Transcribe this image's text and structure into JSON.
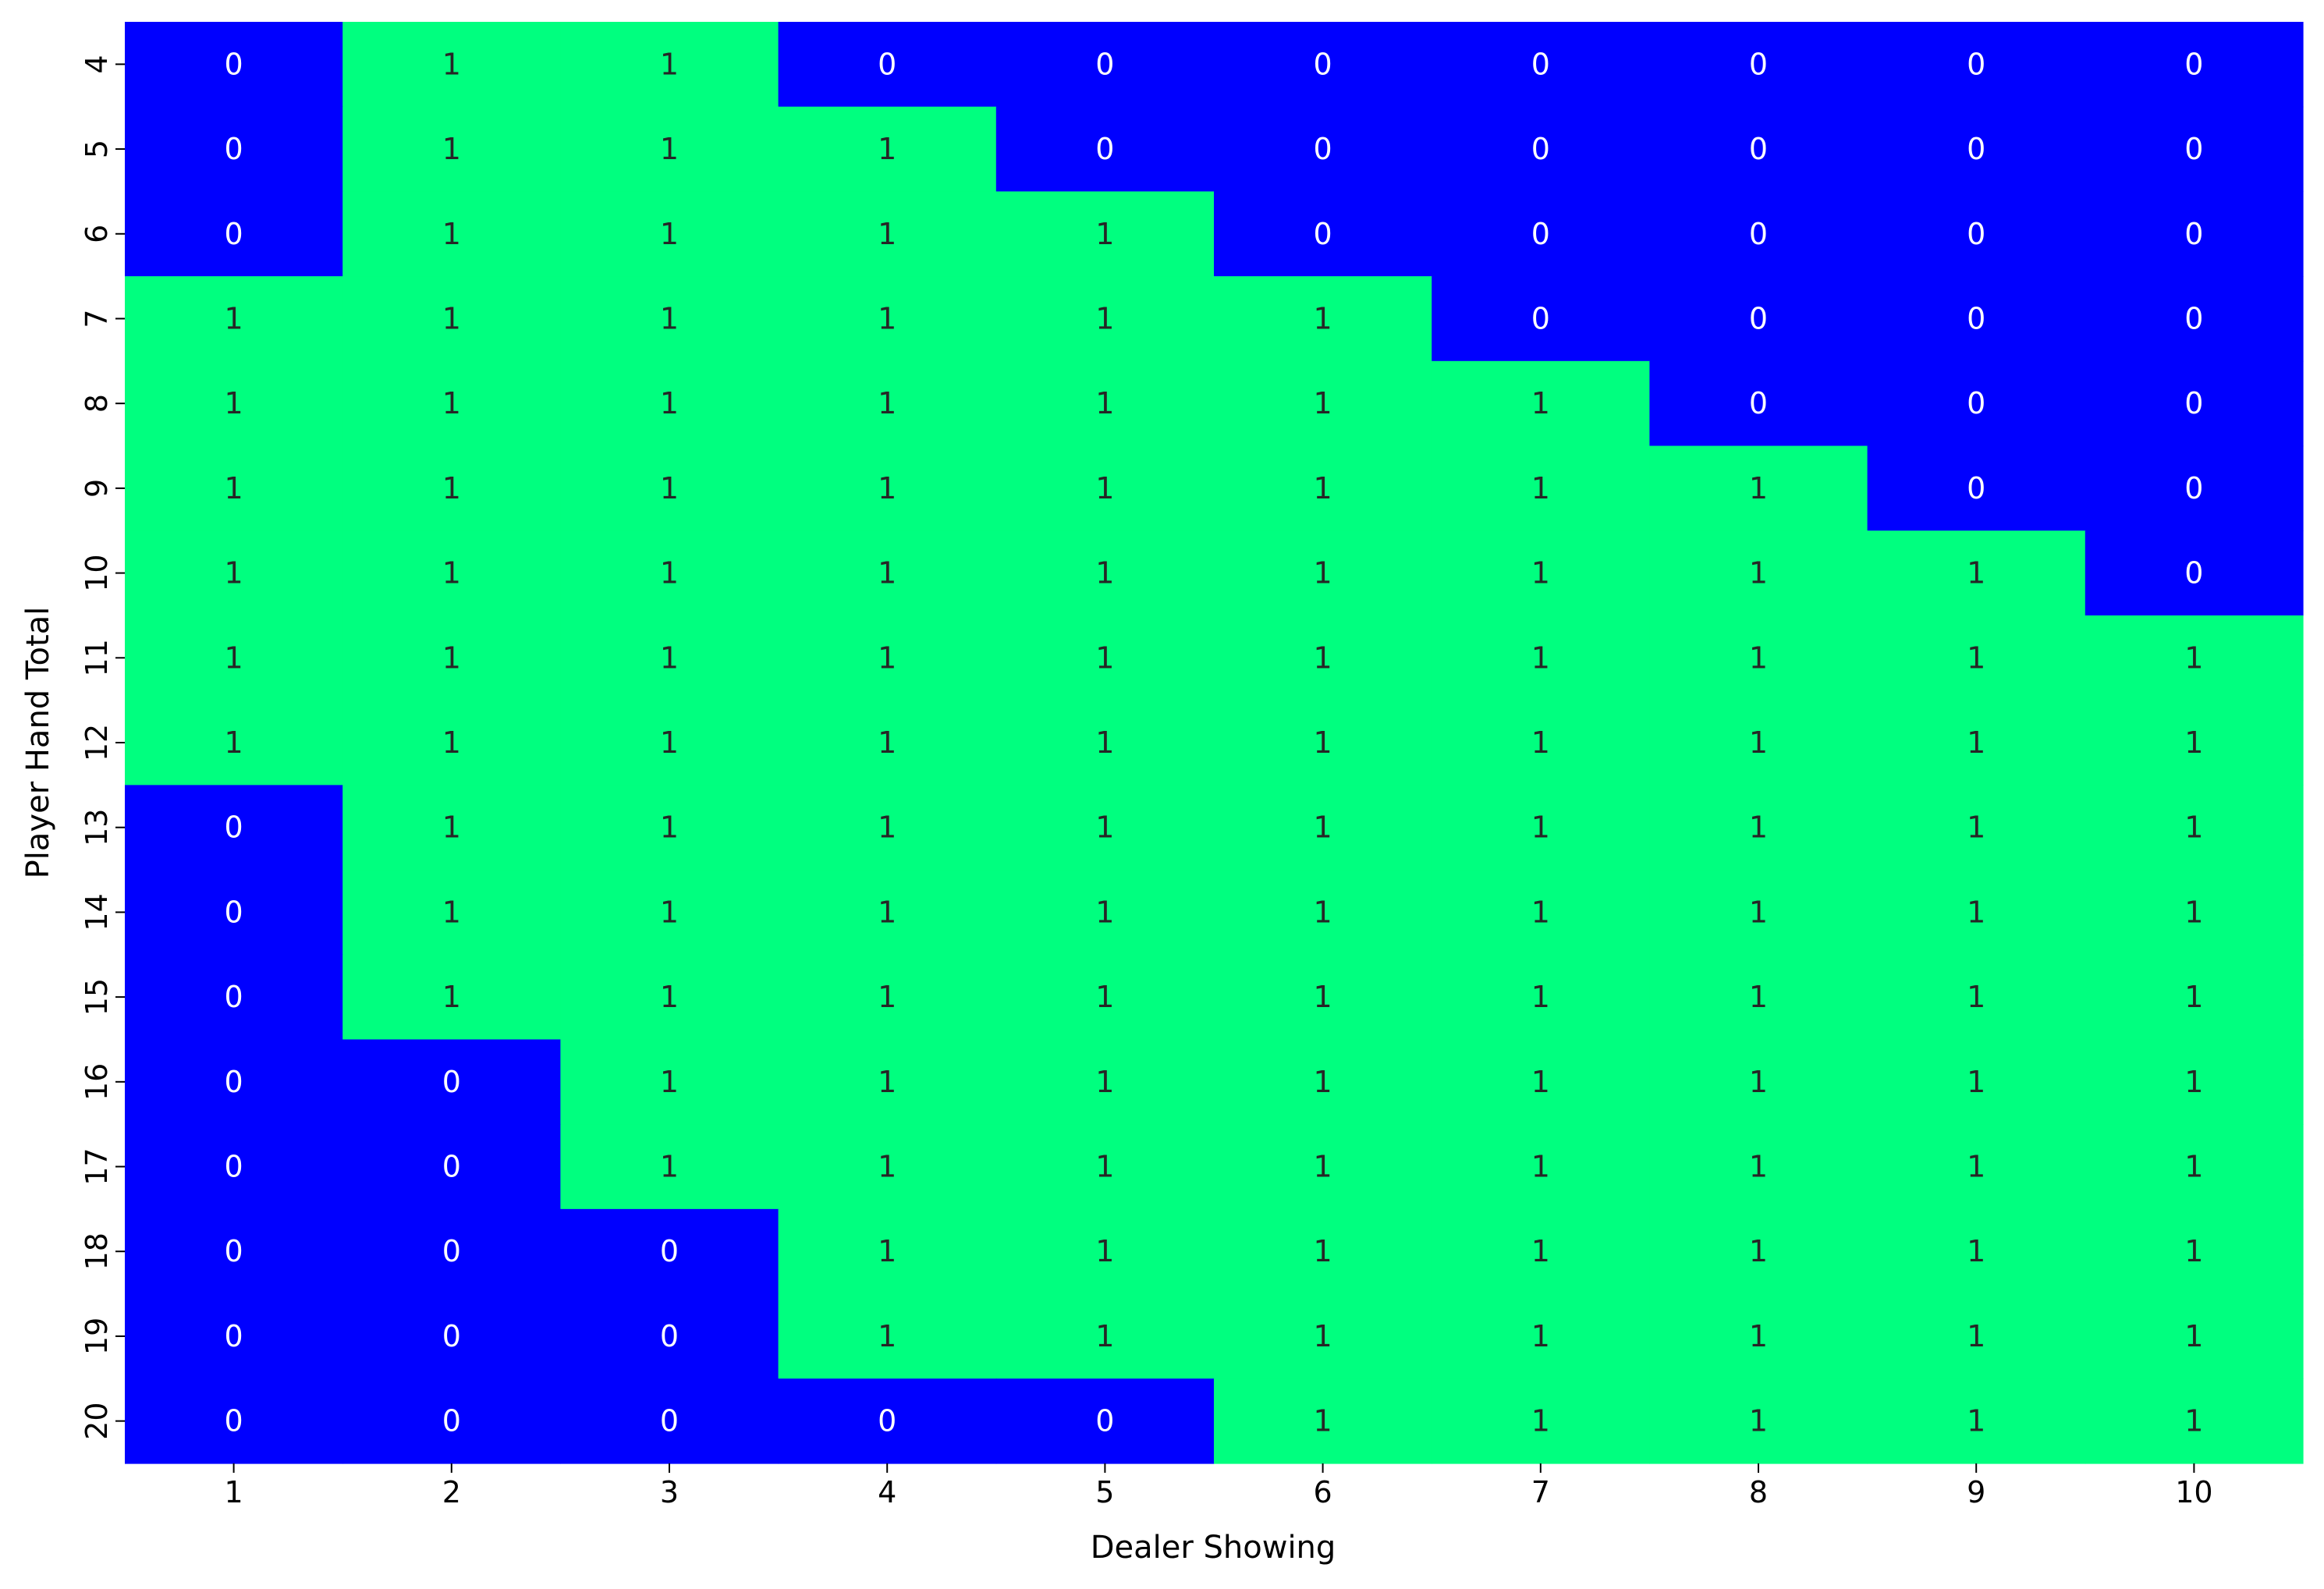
{
  "chart_data": {
    "type": "heatmap",
    "xlabel": "Dealer Showing",
    "ylabel": "Player Hand Total",
    "x_categories": [
      "1",
      "2",
      "3",
      "4",
      "5",
      "6",
      "7",
      "8",
      "9",
      "10"
    ],
    "y_categories": [
      "4",
      "5",
      "6",
      "7",
      "8",
      "9",
      "10",
      "11",
      "12",
      "13",
      "14",
      "15",
      "16",
      "17",
      "18",
      "19",
      "20"
    ],
    "values": [
      [
        0,
        1,
        1,
        0,
        0,
        0,
        0,
        0,
        0,
        0
      ],
      [
        0,
        1,
        1,
        1,
        0,
        0,
        0,
        0,
        0,
        0
      ],
      [
        0,
        1,
        1,
        1,
        1,
        0,
        0,
        0,
        0,
        0
      ],
      [
        1,
        1,
        1,
        1,
        1,
        1,
        0,
        0,
        0,
        0
      ],
      [
        1,
        1,
        1,
        1,
        1,
        1,
        1,
        0,
        0,
        0
      ],
      [
        1,
        1,
        1,
        1,
        1,
        1,
        1,
        1,
        0,
        0
      ],
      [
        1,
        1,
        1,
        1,
        1,
        1,
        1,
        1,
        1,
        0
      ],
      [
        1,
        1,
        1,
        1,
        1,
        1,
        1,
        1,
        1,
        1
      ],
      [
        1,
        1,
        1,
        1,
        1,
        1,
        1,
        1,
        1,
        1
      ],
      [
        0,
        1,
        1,
        1,
        1,
        1,
        1,
        1,
        1,
        1
      ],
      [
        0,
        1,
        1,
        1,
        1,
        1,
        1,
        1,
        1,
        1
      ],
      [
        0,
        1,
        1,
        1,
        1,
        1,
        1,
        1,
        1,
        1
      ],
      [
        0,
        0,
        1,
        1,
        1,
        1,
        1,
        1,
        1,
        1
      ],
      [
        0,
        0,
        1,
        1,
        1,
        1,
        1,
        1,
        1,
        1
      ],
      [
        0,
        0,
        0,
        1,
        1,
        1,
        1,
        1,
        1,
        1
      ],
      [
        0,
        0,
        0,
        1,
        1,
        1,
        1,
        1,
        1,
        1
      ],
      [
        0,
        0,
        0,
        0,
        0,
        1,
        1,
        1,
        1,
        1
      ]
    ],
    "annotations": true,
    "colors": {
      "0": "#0000ff",
      "1": "#00ff7f"
    },
    "text_colors": {
      "0": "#ffffff",
      "1": "#262626"
    },
    "colorbar": false,
    "grid": false
  }
}
